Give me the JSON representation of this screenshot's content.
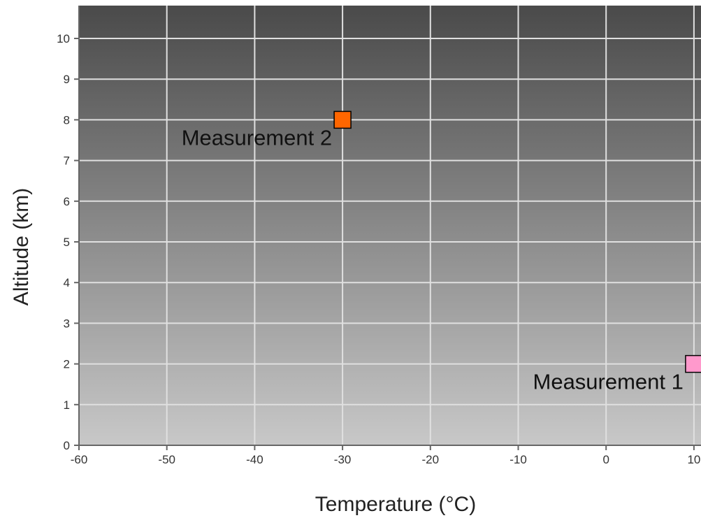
{
  "chart_data": {
    "type": "scatter",
    "title": "",
    "xlabel": "Temperature (°C)",
    "ylabel": "Altitude (km)",
    "xlim": [
      -60,
      10
    ],
    "ylim": [
      0,
      10.8
    ],
    "xticks": [
      -60,
      -50,
      -40,
      -30,
      -20,
      -10,
      0,
      10
    ],
    "yticks": [
      0,
      1,
      2,
      3,
      4,
      5,
      6,
      7,
      8,
      9,
      10
    ],
    "grid": true,
    "background_gradient": {
      "top": "#4a4a4a",
      "bottom": "#c8c8c8"
    },
    "grid_color": "#e0e0e0",
    "axis_color": "#666666",
    "points": [
      {
        "label": "Measurement 1",
        "x": 10,
        "y": 2,
        "color": "#ff99cc"
      },
      {
        "label": "Measurement 2",
        "x": -30,
        "y": 8,
        "color": "#ff6600"
      }
    ]
  }
}
